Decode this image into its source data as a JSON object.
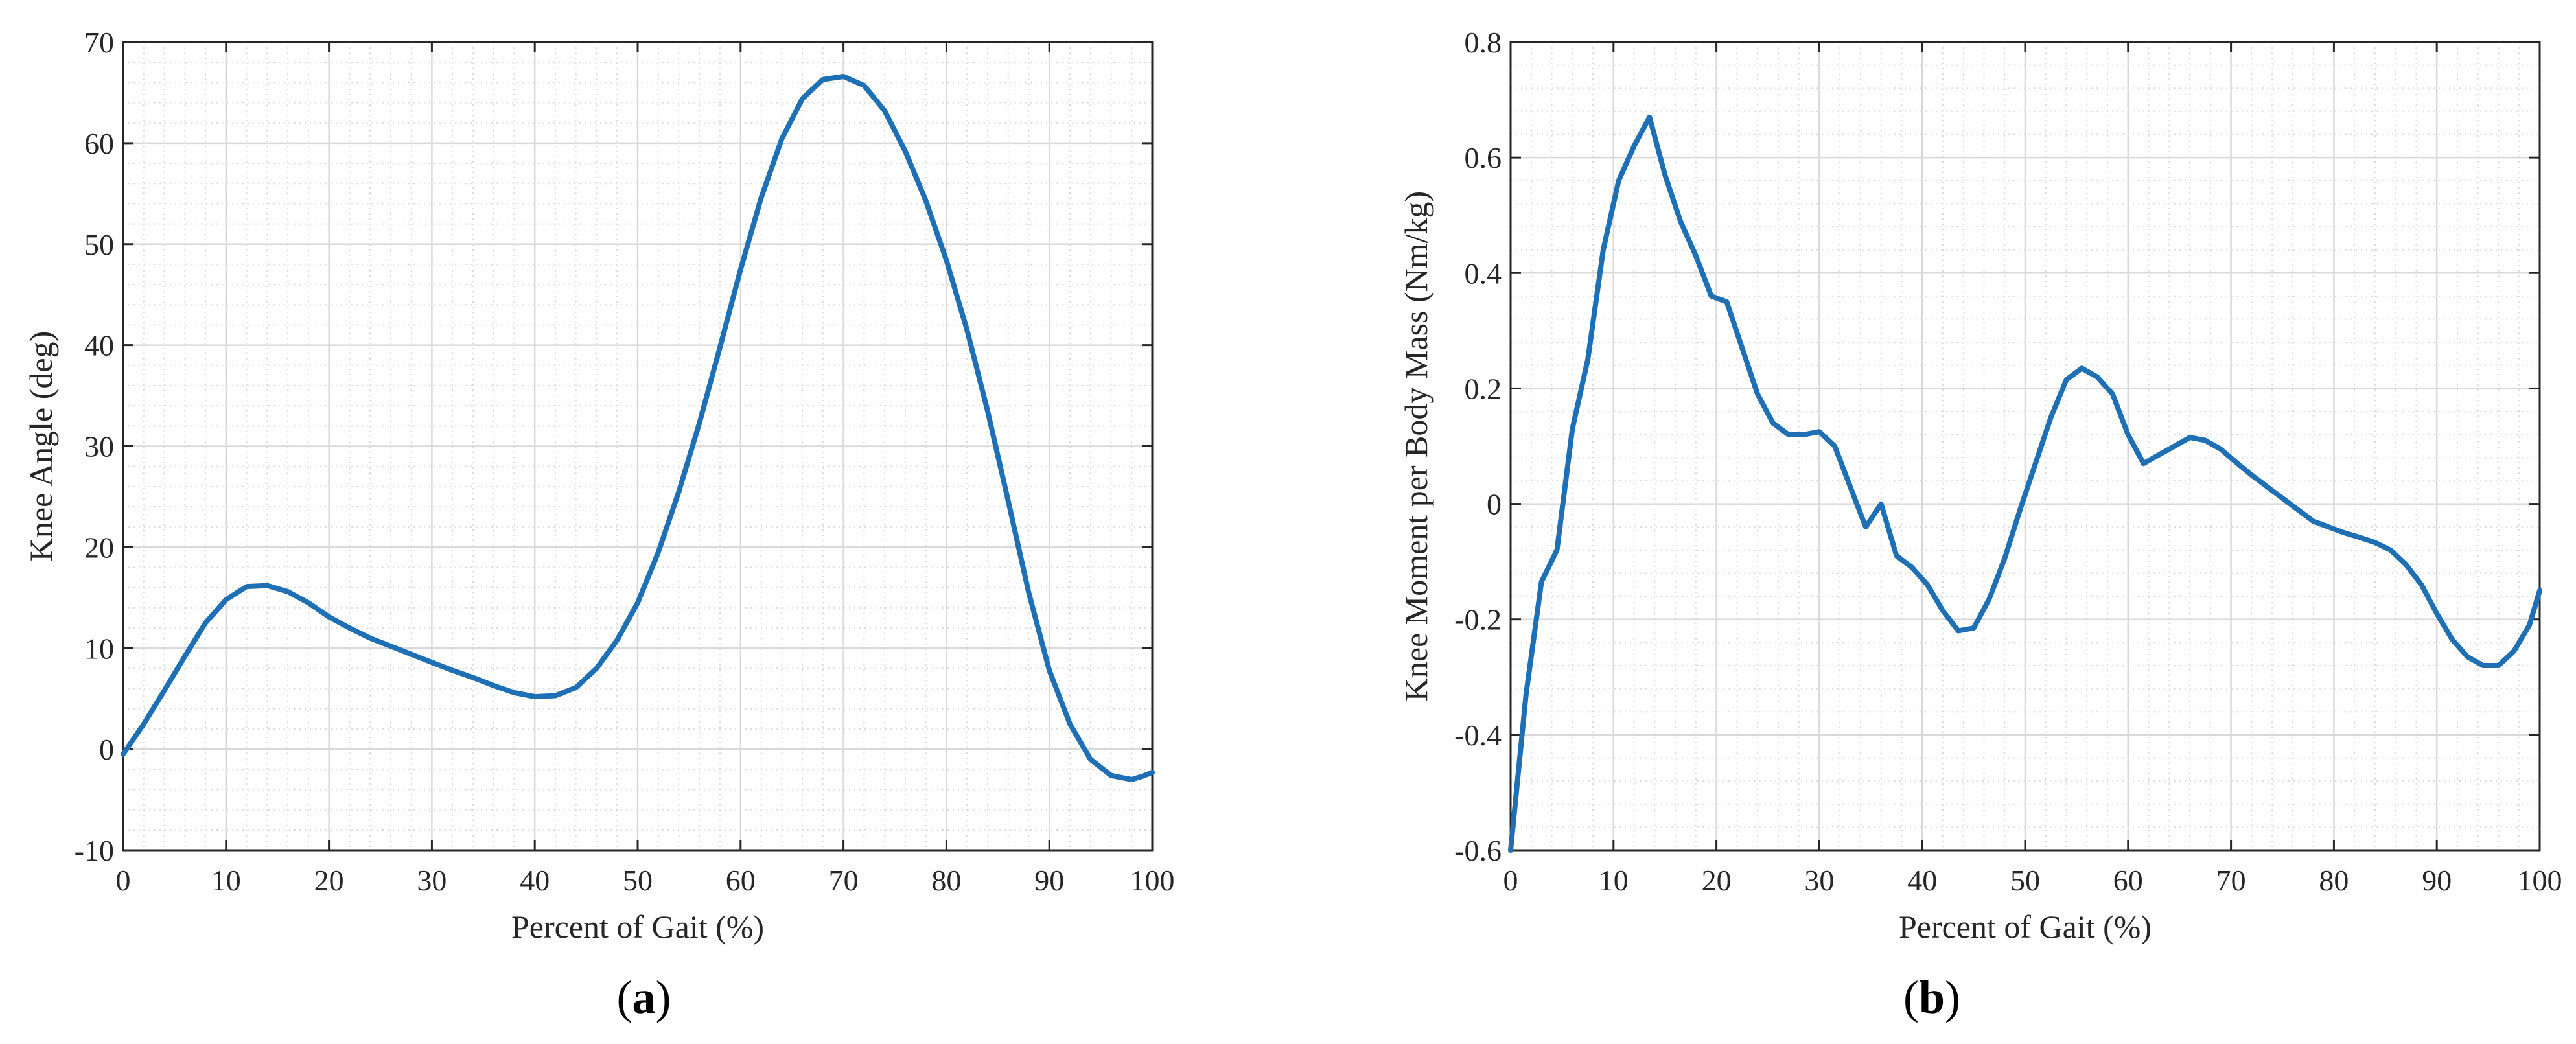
{
  "chart_data": [
    {
      "type": "line",
      "panel_label": "a",
      "xlabel": "Percent of Gait (%)",
      "ylabel": "Knee Angle (deg)",
      "xlim": [
        0,
        100
      ],
      "ylim": [
        -10,
        70
      ],
      "xticks": [
        0,
        10,
        20,
        30,
        40,
        50,
        60,
        70,
        80,
        90,
        100
      ],
      "yticks": [
        -10,
        0,
        10,
        20,
        30,
        40,
        50,
        60,
        70
      ],
      "grid": true,
      "color": "#1f6fb4",
      "x": [
        0,
        2,
        4,
        6,
        8,
        10,
        12,
        14,
        16,
        18,
        20,
        22,
        24,
        26,
        28,
        30,
        32,
        34,
        36,
        38,
        40,
        42,
        44,
        46,
        48,
        50,
        52,
        54,
        56,
        58,
        60,
        62,
        64,
        66,
        68,
        70,
        72,
        74,
        76,
        78,
        80,
        82,
        84,
        86,
        88,
        90,
        92,
        94,
        96,
        98,
        99,
        100
      ],
      "y": [
        -0.5,
        2.5,
        5.8,
        9.2,
        12.5,
        14.8,
        16.1,
        16.2,
        15.6,
        14.5,
        13.1,
        12.0,
        11.0,
        10.2,
        9.4,
        8.6,
        7.8,
        7.1,
        6.3,
        5.6,
        5.2,
        5.3,
        6.1,
        8.0,
        10.8,
        14.5,
        19.5,
        25.5,
        32.3,
        39.8,
        47.5,
        54.6,
        60.4,
        64.4,
        66.3,
        66.6,
        65.7,
        63.2,
        59.2,
        54.3,
        48.4,
        41.5,
        33.5,
        24.6,
        15.5,
        7.8,
        2.5,
        -1.0,
        -2.6,
        -3.0,
        -2.7,
        -2.3
      ]
    },
    {
      "type": "line",
      "panel_label": "b",
      "xlabel": "Percent of Gait (%)",
      "ylabel": "Knee Moment per Body Mass (Nm/kg)",
      "xlim": [
        0,
        100
      ],
      "ylim": [
        -0.6,
        0.8
      ],
      "xticks": [
        0,
        10,
        20,
        30,
        40,
        50,
        60,
        70,
        80,
        90,
        100
      ],
      "yticks": [
        -0.6,
        -0.4,
        -0.2,
        0,
        0.2,
        0.4,
        0.6,
        0.8
      ],
      "grid": true,
      "color": "#1f6fb4",
      "x": [
        0,
        1.5,
        3,
        4.5,
        6,
        7.5,
        9,
        10.5,
        12,
        13.5,
        15,
        16.5,
        18,
        19.5,
        21,
        22.5,
        24,
        25.5,
        27,
        28.5,
        30,
        31.5,
        33,
        34.5,
        36,
        37.5,
        39,
        40.5,
        42,
        43.5,
        45,
        46.5,
        48,
        49.5,
        51,
        52.5,
        54,
        55.5,
        57,
        58.5,
        60,
        61.5,
        63,
        64.5,
        66,
        67.5,
        69,
        70.5,
        72,
        73.5,
        75,
        76.5,
        78,
        79.5,
        81,
        82.5,
        84,
        85.5,
        87,
        88.5,
        90,
        91.5,
        93,
        94.5,
        96,
        97.5,
        99,
        100
      ],
      "y": [
        -0.6,
        -0.33,
        -0.135,
        -0.08,
        0.13,
        0.25,
        0.44,
        0.56,
        0.62,
        0.67,
        0.57,
        0.49,
        0.43,
        0.36,
        0.35,
        0.27,
        0.19,
        0.14,
        0.12,
        0.12,
        0.125,
        0.1,
        0.03,
        -0.04,
        0.0,
        -0.09,
        -0.11,
        -0.14,
        -0.185,
        -0.22,
        -0.215,
        -0.165,
        -0.095,
        -0.01,
        0.07,
        0.15,
        0.215,
        0.235,
        0.22,
        0.19,
        0.12,
        0.07,
        0.085,
        0.1,
        0.115,
        0.11,
        0.095,
        0.072,
        0.05,
        0.03,
        0.01,
        -0.01,
        -0.03,
        -0.04,
        -0.05,
        -0.058,
        -0.067,
        -0.08,
        -0.105,
        -0.14,
        -0.19,
        -0.235,
        -0.265,
        -0.28,
        -0.28,
        -0.255,
        -0.21,
        -0.15
      ]
    }
  ]
}
